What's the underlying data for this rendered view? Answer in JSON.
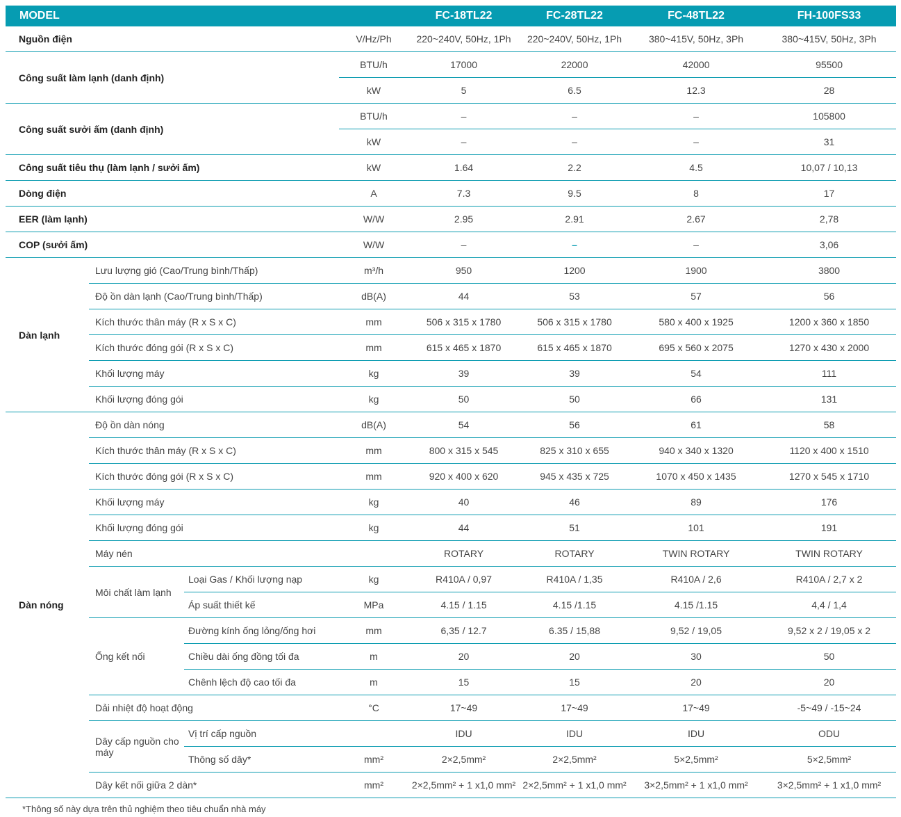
{
  "header": {
    "model_label": "MODEL",
    "models": [
      "FC-18TL22",
      "FC-28TL22",
      "FC-48TL22",
      "FH-100FS33"
    ]
  },
  "rows": [
    {
      "label": "Nguồn điện",
      "unit": "V/Hz/Ph",
      "values": [
        "220~240V, 50Hz, 1Ph",
        "220~240V, 50Hz, 1Ph",
        "380~415V, 50Hz, 3Ph",
        "380~415V, 50Hz, 3Ph"
      ]
    },
    {
      "label": "Công suất làm lạnh (danh định)",
      "rows": [
        {
          "unit": "BTU/h",
          "values": [
            "17000",
            "22000",
            "42000",
            "95500"
          ]
        },
        {
          "unit": "kW",
          "values": [
            "5",
            "6.5",
            "12.3",
            "28"
          ]
        }
      ]
    },
    {
      "label": "Công suất sưởi ấm (danh định)",
      "rows": [
        {
          "unit": "BTU/h",
          "values": [
            "–",
            "–",
            "–",
            "105800"
          ]
        },
        {
          "unit": "kW",
          "values": [
            "–",
            "–",
            "–",
            "31"
          ]
        }
      ]
    },
    {
      "label": "Công suất tiêu thụ (làm lạnh / sưởi ấm)",
      "unit": "kW",
      "values": [
        "1.64",
        "2.2",
        "4.5",
        "10,07 / 10,13"
      ]
    },
    {
      "label": "Dòng điện",
      "unit": "A",
      "values": [
        "7.3",
        "9.5",
        "8",
        "17"
      ]
    },
    {
      "label": "EER (làm lạnh)",
      "unit": "W/W",
      "values": [
        "2.95",
        "2.91",
        "2.67",
        "2,78"
      ]
    },
    {
      "label": "COP (sưởi ấm)",
      "unit": "W/W",
      "values": [
        "–",
        "–",
        "–",
        "3,06"
      ]
    },
    {
      "group": "Dàn lạnh",
      "items": [
        {
          "label": "Lưu lượng gió (Cao/Trung bình/Thấp)",
          "unit": "m³/h",
          "values": [
            "950",
            "1200",
            "1900",
            "3800"
          ]
        },
        {
          "label": "Độ ồn dàn lạnh (Cao/Trung bình/Thấp)",
          "unit": "dB(A)",
          "values": [
            "44",
            "53",
            "57",
            "56"
          ]
        },
        {
          "label": "Kích thước thân máy (R x S x C)",
          "unit": "mm",
          "values": [
            "506 x 315 x 1780",
            "506 x 315 x 1780",
            "580 x 400 x 1925",
            "1200 x 360 x 1850"
          ]
        },
        {
          "label": "Kích thước đóng gói (R x S x C)",
          "unit": "mm",
          "values": [
            "615 x 465 x 1870",
            "615 x 465 x 1870",
            "695 x 560 x 2075",
            "1270 x 430 x 2000"
          ]
        },
        {
          "label": "Khối lượng máy",
          "unit": "kg",
          "values": [
            "39",
            "39",
            "54",
            "111"
          ]
        },
        {
          "label": "Khối lượng đóng gói",
          "unit": "kg",
          "values": [
            "50",
            "50",
            "66",
            "131"
          ]
        }
      ]
    },
    {
      "group": "Dàn nóng",
      "items": [
        {
          "label": "Độ ồn dàn nóng",
          "unit": "dB(A)",
          "values": [
            "54",
            "56",
            "61",
            "58"
          ]
        },
        {
          "label": "Kích thước thân máy (R x S x C)",
          "unit": "mm",
          "values": [
            "800 x 315 x 545",
            "825 x 310 x 655",
            "940 x 340 x 1320",
            "1120 x 400 x 1510"
          ]
        },
        {
          "label": "Kích thước đóng gói (R x S x C)",
          "unit": "mm",
          "values": [
            "920 x 400 x 620",
            "945 x 435 x 725",
            "1070 x 450 x 1435",
            "1270 x 545 x 1710"
          ]
        },
        {
          "label": "Khối lượng máy",
          "unit": "kg",
          "values": [
            "40",
            "46",
            "89",
            "176"
          ]
        },
        {
          "label": "Khối lượng đóng gói",
          "unit": "kg",
          "values": [
            "44",
            "51",
            "101",
            "191"
          ]
        },
        {
          "label": "Máy nén",
          "unit": "",
          "values": [
            "ROTARY",
            "ROTARY",
            "TWIN ROTARY",
            "TWIN ROTARY"
          ]
        },
        {
          "label": "Môi chất làm lạnh",
          "rows": [
            {
              "label": "Loại Gas / Khối lượng nạp",
              "unit": "kg",
              "values": [
                "R410A / 0,97",
                "R410A / 1,35",
                "R410A / 2,6",
                "R410A / 2,7 x 2"
              ]
            },
            {
              "label": "Áp suất thiết kế",
              "unit": "MPa",
              "values": [
                "4.15 / 1.15",
                "4.15 /1.15",
                "4.15 /1.15",
                "4,4 / 1,4"
              ]
            }
          ]
        },
        {
          "label": "Ống kết nối",
          "rows": [
            {
              "label": "Đường kính ống lỏng/ống hơi",
              "unit": "mm",
              "values": [
                "6,35 / 12.7",
                "6.35 / 15,88",
                "9,52 / 19,05",
                "9,52 x 2 / 19,05 x 2"
              ]
            },
            {
              "label": "Chiều dài ống đồng tối đa",
              "unit": "m",
              "values": [
                "20",
                "20",
                "30",
                "50"
              ]
            },
            {
              "label": "Chênh lệch độ cao tối đa",
              "unit": "m",
              "values": [
                "15",
                "15",
                "20",
                "20"
              ]
            }
          ]
        },
        {
          "label": "Dải nhiệt độ hoạt động",
          "unit": "°C",
          "values": [
            "17~49",
            "17~49",
            "17~49",
            "-5~49 / -15~24"
          ]
        },
        {
          "label": "Dây cấp nguồn cho máy",
          "rows": [
            {
              "label": "Vị trí cấp nguồn",
              "unit": "",
              "values": [
                "IDU",
                "IDU",
                "IDU",
                "ODU"
              ]
            },
            {
              "label": "Thông số dây*",
              "unit": "mm²",
              "values": [
                "2×2,5mm²",
                "2×2,5mm²",
                "5×2,5mm²",
                "5×2,5mm²"
              ]
            }
          ]
        },
        {
          "label": "Dây kết nối giữa 2 dàn*",
          "unit": "mm²",
          "values": [
            "2×2,5mm² + 1 x1,0 mm²",
            "2×2,5mm² + 1 x1,0 mm²",
            "3×2,5mm² + 1 x1,0 mm²",
            "3×2,5mm² + 1 x1,0 mm²"
          ]
        }
      ]
    }
  ],
  "footnote": "*Thông số này dựa trên thủ nghiệm theo tiêu chuẩn nhà máy",
  "colors": {
    "accent": "#069cb2"
  }
}
